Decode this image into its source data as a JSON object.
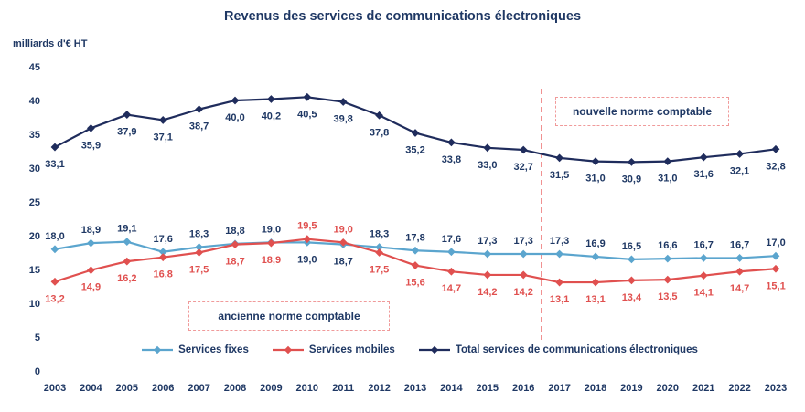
{
  "title": "Revenus des services de communications électroniques",
  "y_axis_unit": "milliards d'€ HT",
  "annotations": {
    "new_norm": "nouvelle norme comptable",
    "old_norm": "ancienne norme comptable"
  },
  "colors": {
    "title_navy": "#1F3864",
    "axis_navy": "#1F3864",
    "label_navy": "#1F3864",
    "separator_dashed": "#EE8585"
  },
  "chart_data": {
    "type": "line",
    "title": "Revenus des services de communications électroniques",
    "ylabel": "milliards d'€ HT",
    "ylim": [
      0,
      45
    ],
    "ytick_step": 5,
    "grid": false,
    "legend_position": "bottom",
    "decimal_separator": ",",
    "separator_after_year": 2016,
    "x": [
      2003,
      2004,
      2005,
      2006,
      2007,
      2008,
      2009,
      2010,
      2011,
      2012,
      2013,
      2014,
      2015,
      2016,
      2017,
      2018,
      2019,
      2020,
      2021,
      2022,
      2023
    ],
    "series": [
      {
        "name": "Services fixes",
        "color": "#5BA5CE",
        "label_color": "#1F3864",
        "marker": "diamond",
        "values": [
          18.0,
          18.9,
          19.1,
          17.6,
          18.3,
          18.8,
          19.0,
          19.0,
          18.7,
          18.3,
          17.8,
          17.6,
          17.3,
          17.3,
          17.3,
          16.9,
          16.5,
          16.6,
          16.7,
          16.7,
          17.0
        ]
      },
      {
        "name": "Services mobiles",
        "color": "#E0504F",
        "label_color": "#E0504F",
        "marker": "diamond",
        "values": [
          13.2,
          14.9,
          16.2,
          16.8,
          17.5,
          18.7,
          18.9,
          19.5,
          19.0,
          17.5,
          15.6,
          14.7,
          14.2,
          14.2,
          13.1,
          13.1,
          13.4,
          13.5,
          14.1,
          14.7,
          15.1
        ]
      },
      {
        "name": "Total services de communications électroniques",
        "color": "#1F2C5C",
        "label_color": "#1F3864",
        "marker": "diamond",
        "values": [
          33.1,
          35.9,
          37.9,
          37.1,
          38.7,
          40.0,
          40.2,
          40.5,
          39.8,
          37.8,
          35.2,
          33.8,
          33.0,
          32.7,
          31.5,
          31.0,
          30.9,
          31.0,
          31.6,
          32.1,
          32.8
        ]
      }
    ]
  }
}
